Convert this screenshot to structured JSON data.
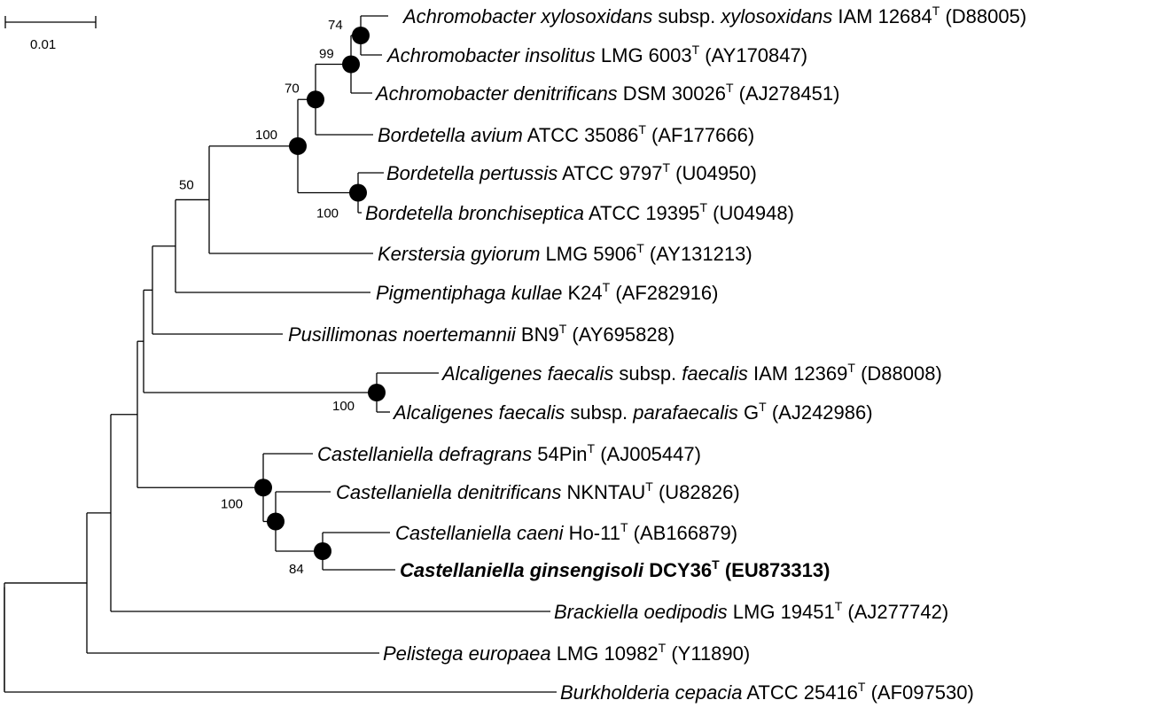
{
  "scale_bar": {
    "label": "0.01"
  },
  "taxa": [
    {
      "id": "t1",
      "species": "Achromobacter xylosoxidans",
      "mid": "subsp.",
      "subsp": "xylosoxidans",
      "strain": "IAM 12684",
      "type": "T",
      "acc": "(D88005)",
      "bold": false
    },
    {
      "id": "t2",
      "species": "Achromobacter insolitus",
      "strain": "LMG 6003",
      "type": "T",
      "acc": "(AY170847)",
      "bold": false
    },
    {
      "id": "t3",
      "species": "Achromobacter denitrificans",
      "strain": "DSM 30026",
      "type": "T",
      "acc": "(AJ278451)",
      "bold": false
    },
    {
      "id": "t4",
      "species": "Bordetella avium",
      "strain": "ATCC 35086",
      "type": "T",
      "acc": "(AF177666)",
      "bold": false
    },
    {
      "id": "t5",
      "species": "Bordetella pertussis",
      "strain": "ATCC 9797",
      "type": "T",
      "acc": "(U04950)",
      "bold": false
    },
    {
      "id": "t6",
      "species": "Bordetella bronchiseptica",
      "strain": "ATCC 19395",
      "type": "T",
      "acc": "(U04948)",
      "bold": false
    },
    {
      "id": "t7",
      "species": "Kerstersia gyiorum",
      "strain": "LMG 5906",
      "type": "T",
      "acc": "(AY131213)",
      "bold": false
    },
    {
      "id": "t8",
      "species": "Pigmentiphaga kullae",
      "strain": "K24",
      "type": "T",
      "acc": "(AF282916)",
      "bold": false
    },
    {
      "id": "t9",
      "species": "Pusillimonas noertemannii",
      "strain": "BN9",
      "type": "T",
      "acc": "(AY695828)",
      "bold": false
    },
    {
      "id": "t10",
      "species": "Alcaligenes faecalis",
      "mid": "subsp.",
      "subsp": "faecalis",
      "strain": "IAM 12369",
      "type": "T",
      "acc": "(D88008)",
      "bold": false
    },
    {
      "id": "t11",
      "species": "Alcaligenes faecalis",
      "mid": "subsp.",
      "subsp": "parafaecalis",
      "strain": "G",
      "type": "T",
      "acc": "(AJ242986)",
      "bold": false
    },
    {
      "id": "t12",
      "species": "Castellaniella defragrans",
      "strain": "54Pin",
      "type": "T",
      "acc": "(AJ005447)",
      "bold": false
    },
    {
      "id": "t13",
      "species": "Castellaniella denitrificans",
      "strain": "NKNTAU",
      "type": "T",
      "acc": "(U82826)",
      "bold": false
    },
    {
      "id": "t14",
      "species": "Castellaniella caeni",
      "strain": "Ho-11",
      "type": "T",
      "acc": "(AB166879)",
      "bold": false
    },
    {
      "id": "t15",
      "species": "Castellaniella ginsengisoli",
      "strain": "DCY36",
      "type": "T",
      "acc": "(EU873313)",
      "bold": true
    },
    {
      "id": "t16",
      "species": "Brackiella oedipodis",
      "strain": "LMG 19451",
      "type": "T",
      "acc": "(AJ277742)",
      "bold": false
    },
    {
      "id": "t17",
      "species": "Pelistega europaea",
      "strain": "LMG 10982",
      "type": "T",
      "acc": "(Y11890)",
      "bold": false
    },
    {
      "id": "t18",
      "species": "Burkholderia cepacia",
      "strain": "ATCC 25416",
      "type": "T",
      "acc": "(AF097530)",
      "bold": false
    }
  ],
  "bootstrap": [
    {
      "node": "n_t1t2",
      "value": "74"
    },
    {
      "node": "n_achro",
      "value": "99"
    },
    {
      "node": "n_achro_bav",
      "value": "70"
    },
    {
      "node": "n_bord",
      "value": "100"
    },
    {
      "node": "n_pert",
      "value": "100"
    },
    {
      "node": "n_kers",
      "value": "50"
    },
    {
      "node": "n_alc",
      "value": "100"
    },
    {
      "node": "n_cast",
      "value": "100"
    },
    {
      "node": "n_cgin",
      "value": "84"
    }
  ]
}
